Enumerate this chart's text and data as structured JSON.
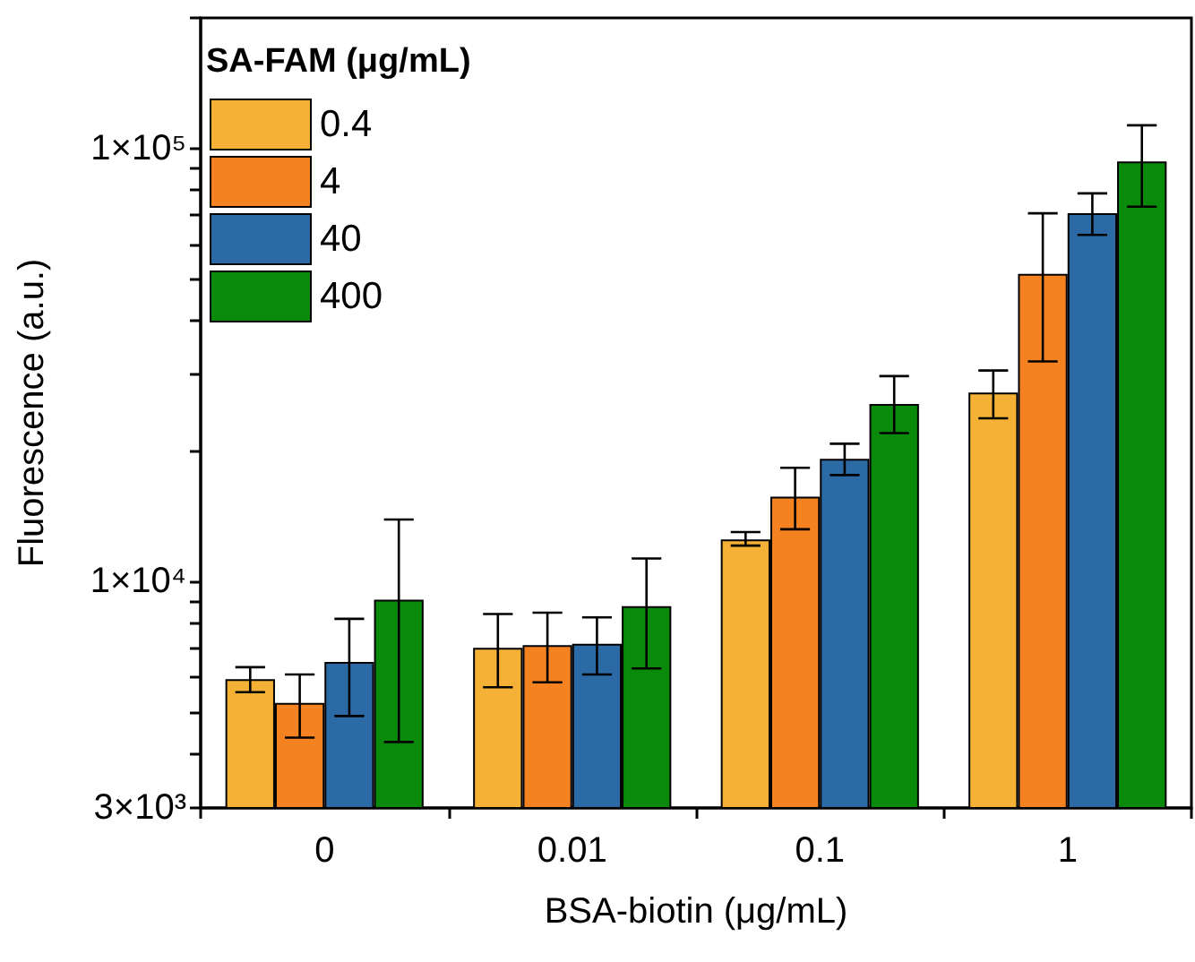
{
  "chart_data": {
    "type": "bar",
    "xlabel": "BSA-biotin (μg/mL)",
    "ylabel": "Fluorescence (a.u.)",
    "legend_title": "SA-FAM (μg/mL)",
    "legend": "top left",
    "log": "y",
    "grid": false,
    "categories": [
      "0",
      "0.01",
      "0.1",
      "1"
    ],
    "ylim": [
      3000,
      200000
    ],
    "yticks": [
      {
        "value": 3000,
        "label": "3×10³"
      },
      {
        "value": 4000,
        "label": null
      },
      {
        "value": 5000,
        "label": null
      },
      {
        "value": 6000,
        "label": null
      },
      {
        "value": 7000,
        "label": null
      },
      {
        "value": 8000,
        "label": null
      },
      {
        "value": 9000,
        "label": null
      },
      {
        "value": 10000,
        "label": "1×10⁴"
      },
      {
        "value": 20000,
        "label": null
      },
      {
        "value": 30000,
        "label": null
      },
      {
        "value": 40000,
        "label": null
      },
      {
        "value": 50000,
        "label": null
      },
      {
        "value": 60000,
        "label": null
      },
      {
        "value": 70000,
        "label": null
      },
      {
        "value": 80000,
        "label": null
      },
      {
        "value": 90000,
        "label": null
      },
      {
        "value": 100000,
        "label": "1×10⁵"
      },
      {
        "value": 200000,
        "label": null
      }
    ],
    "series": [
      {
        "name": "0.4",
        "color": "#f5b036",
        "values": [
          5950,
          7030,
          12500,
          27300
        ],
        "errors": [
          [
            5550,
            6340
          ],
          [
            5700,
            8410
          ],
          [
            12100,
            13000
          ],
          [
            23800,
            30700
          ]
        ]
      },
      {
        "name": "4",
        "color": "#f58220",
        "values": [
          5240,
          7130,
          15700,
          51300
        ],
        "errors": [
          [
            4360,
            6100
          ],
          [
            5850,
            8470
          ],
          [
            13200,
            18300
          ],
          [
            32200,
            70800
          ]
        ]
      },
      {
        "name": "40",
        "color": "#2c6aa6",
        "values": [
          6520,
          7180,
          19200,
          70800
        ],
        "errors": [
          [
            4890,
            8200
          ],
          [
            6100,
            8260
          ],
          [
            17600,
            20800
          ],
          [
            63100,
            78700
          ]
        ]
      },
      {
        "name": "400",
        "color": "#0a8a0a",
        "values": [
          9080,
          8770,
          25700,
          93300
        ],
        "errors": [
          [
            4260,
            13900
          ],
          [
            6300,
            11300
          ],
          [
            22000,
            29800
          ],
          [
            73300,
            113000
          ]
        ]
      }
    ]
  }
}
